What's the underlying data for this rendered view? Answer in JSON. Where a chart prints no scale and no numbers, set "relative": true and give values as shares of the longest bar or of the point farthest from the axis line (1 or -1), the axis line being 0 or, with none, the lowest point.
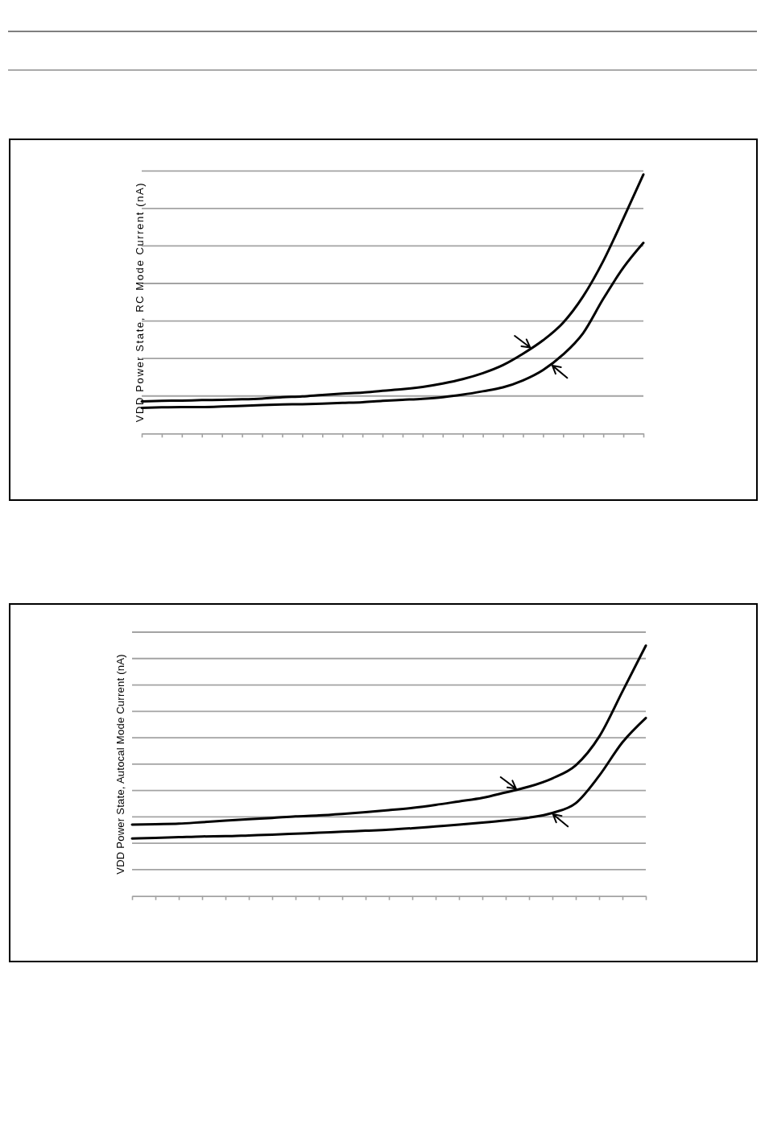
{
  "chart_data": [
    {
      "type": "line",
      "ylabel": "VDD Power State, RC Mode Current (nA)",
      "relative": true,
      "grid": "y",
      "categories": [
        null,
        null,
        null,
        null,
        null,
        null,
        null,
        null,
        null,
        null,
        null,
        null,
        null,
        null,
        null,
        null,
        null,
        null,
        null,
        null,
        null,
        null,
        null,
        null,
        null,
        null
      ],
      "series": [
        {
          "color": "#000000",
          "values": [
            0.124,
            0.126,
            0.127,
            0.129,
            0.13,
            0.132,
            0.135,
            0.14,
            0.143,
            0.149,
            0.154,
            0.158,
            0.165,
            0.171,
            0.18,
            0.193,
            0.21,
            0.233,
            0.264,
            0.308,
            0.36,
            0.428,
            0.53,
            0.666,
            0.83,
            1
          ]
        },
        {
          "color": "#000000",
          "values": [
            0.099,
            0.101,
            0.102,
            0.102,
            0.104,
            0.107,
            0.11,
            0.112,
            0.113,
            0.115,
            0.118,
            0.121,
            0.126,
            0.13,
            0.134,
            0.14,
            0.15,
            0.163,
            0.178,
            0.205,
            0.245,
            0.305,
            0.388,
            0.52,
            0.64,
            0.736
          ]
        }
      ]
    },
    {
      "type": "line",
      "ylabel": "VDD Power State, Autocal Mode Current (nA)",
      "relative": true,
      "grid": "y",
      "categories": [
        null,
        null,
        null,
        null,
        null,
        null,
        null,
        null,
        null,
        null,
        null,
        null,
        null,
        null,
        null,
        null,
        null,
        null,
        null,
        null,
        null,
        null,
        null
      ],
      "series": [
        {
          "color": "#000000",
          "values": [
            0.285,
            0.287,
            0.289,
            0.295,
            0.301,
            0.307,
            0.312,
            0.318,
            0.322,
            0.328,
            0.335,
            0.343,
            0.352,
            0.364,
            0.378,
            0.392,
            0.414,
            0.437,
            0.47,
            0.522,
            0.636,
            0.817,
            1
          ]
        },
        {
          "color": "#000000",
          "values": [
            0.23,
            0.232,
            0.235,
            0.238,
            0.239,
            0.242,
            0.245,
            0.249,
            0.253,
            0.257,
            0.261,
            0.265,
            0.271,
            0.278,
            0.285,
            0.293,
            0.302,
            0.313,
            0.332,
            0.371,
            0.48,
            0.614,
            0.711
          ]
        }
      ]
    }
  ]
}
